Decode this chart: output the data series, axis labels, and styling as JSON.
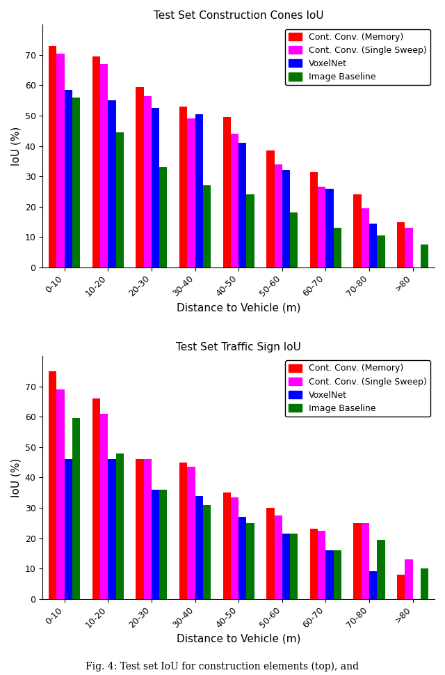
{
  "chart1": {
    "title": "Test Set Construction Cones IoU",
    "xlabel": "Distance to Vehicle (m)",
    "ylabel": "IoU (%)",
    "categories": [
      "0-10",
      "10-20",
      "20-30",
      "30-40",
      "40-50",
      "50-60",
      "60-70",
      "70-80",
      ">80"
    ],
    "series": {
      "Cont. Conv. (Memory)": [
        73,
        69.5,
        59.5,
        53,
        49.5,
        38.5,
        31.5,
        24,
        15
      ],
      "Cont. Conv. (Single Sweep)": [
        70.5,
        67,
        56.5,
        49,
        44,
        34,
        26.5,
        19.5,
        13
      ],
      "VoxelNet": [
        58.5,
        55,
        52.5,
        50.5,
        41,
        32,
        26,
        14.5,
        0
      ],
      "Image Baseline": [
        56,
        44.5,
        33,
        27,
        24,
        18,
        13,
        10.5,
        7.5
      ]
    },
    "colors": [
      "#ff0000",
      "#ff00ff",
      "#0000ff",
      "#007700"
    ]
  },
  "chart2": {
    "title": "Test Set Traffic Sign IoU",
    "xlabel": "Distance to Vehicle (m)",
    "ylabel": "IoU (%)",
    "categories": [
      "0-10",
      "10-20",
      "20-30",
      "30-40",
      "40-50",
      "50-60",
      "60-70",
      "70-80",
      ">80"
    ],
    "series": {
      "Cont. Conv. (Memory)": [
        75,
        66,
        46,
        45,
        35,
        30,
        23,
        25,
        8
      ],
      "Cont. Conv. (Single Sweep)": [
        69,
        61,
        46,
        43.5,
        33.5,
        27.5,
        22.5,
        25,
        13
      ],
      "VoxelNet": [
        46,
        46,
        36,
        34,
        27,
        21.5,
        16,
        9,
        0
      ],
      "Image Baseline": [
        59.5,
        48,
        36,
        31,
        25,
        21.5,
        16,
        19.5,
        10
      ]
    },
    "colors": [
      "#ff0000",
      "#ff00ff",
      "#0000ff",
      "#007700"
    ]
  },
  "legend_labels": [
    "Cont. Conv. (Memory)",
    "Cont. Conv. (Single Sweep)",
    "VoxelNet",
    "Image Baseline"
  ],
  "bar_width": 0.18,
  "caption": "Fig. 4: Test set IoU for construction elements (top), and"
}
